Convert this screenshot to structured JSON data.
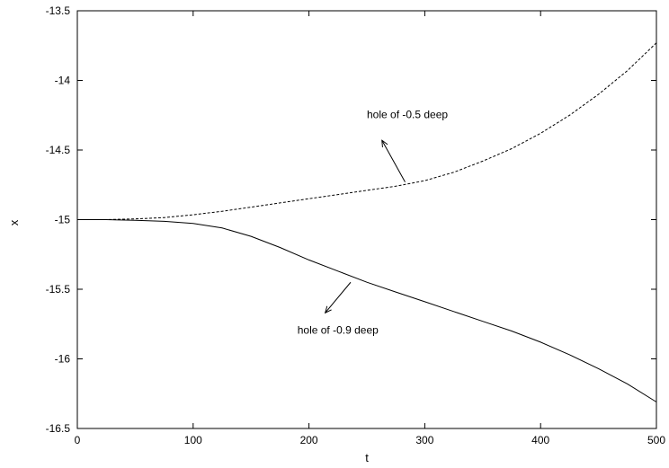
{
  "chart_data": {
    "type": "line",
    "title": "",
    "xlabel": "t",
    "ylabel": "x",
    "xlim": [
      0,
      500
    ],
    "ylim": [
      -16.5,
      -13.5
    ],
    "xticks": [
      0,
      100,
      200,
      300,
      400,
      500
    ],
    "yticks": [
      -13.5,
      -14,
      -14.5,
      -15,
      -15.5,
      -16,
      -16.5
    ],
    "xtick_labels": [
      "0",
      "100",
      "200",
      "300",
      "400",
      "500"
    ],
    "ytick_labels": [
      "-13.5",
      "-14",
      "-14.5",
      "-15",
      "-15.5",
      "-16",
      "-16.5"
    ],
    "grid": false,
    "legend": "none",
    "series": [
      {
        "style": "dashed",
        "color": "#000000",
        "x": [
          0,
          25,
          50,
          75,
          100,
          125,
          150,
          175,
          200,
          225,
          250,
          275,
          300,
          325,
          350,
          375,
          400,
          425,
          450,
          475,
          500
        ],
        "y": [
          -15.0,
          -15.0,
          -14.995,
          -14.985,
          -14.965,
          -14.94,
          -14.91,
          -14.88,
          -14.85,
          -14.82,
          -14.79,
          -14.76,
          -14.72,
          -14.66,
          -14.58,
          -14.49,
          -14.38,
          -14.25,
          -14.1,
          -13.93,
          -13.73
        ]
      },
      {
        "style": "solid",
        "color": "#000000",
        "x": [
          0,
          25,
          50,
          75,
          100,
          125,
          150,
          175,
          200,
          225,
          250,
          275,
          300,
          325,
          350,
          375,
          400,
          425,
          450,
          475,
          500
        ],
        "y": [
          -15.0,
          -15.0,
          -15.005,
          -15.012,
          -15.028,
          -15.06,
          -15.12,
          -15.2,
          -15.29,
          -15.37,
          -15.45,
          -15.52,
          -15.59,
          -15.66,
          -15.73,
          -15.8,
          -15.88,
          -15.97,
          -16.07,
          -16.18,
          -16.31
        ]
      }
    ],
    "annotations": [
      {
        "text": "hole of -0.5 deep",
        "text_at": [
          250,
          -14.27
        ],
        "arrow_from": [
          283,
          -14.73
        ],
        "arrow_to": [
          263,
          -14.43
        ]
      },
      {
        "text": "hole of -0.9 deep",
        "text_at": [
          190,
          -15.82
        ],
        "arrow_from": [
          236,
          -15.45
        ],
        "arrow_to": [
          214,
          -15.67
        ]
      }
    ]
  }
}
